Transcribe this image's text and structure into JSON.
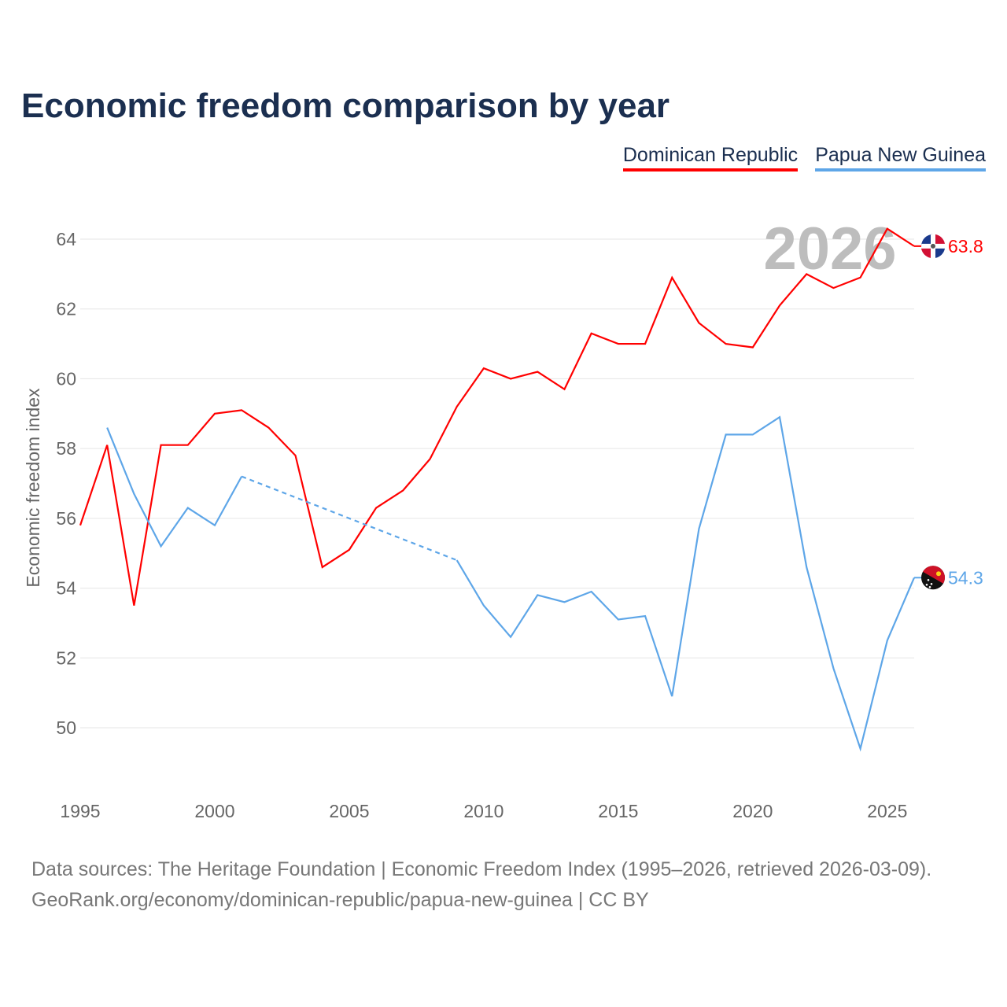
{
  "title": "Economic freedom comparison by year",
  "legend": [
    {
      "label": "Dominican Republic",
      "color": "#ff0000"
    },
    {
      "label": "Papua New Guinea",
      "color": "#5ea6e8"
    }
  ],
  "footer": {
    "line1": "Data sources: The Heritage Foundation | Economic Freedom Index (1995–2026, retrieved 2026-03-09).",
    "line2": "GeoRank.org/economy/dominican-republic/papua-new-guinea | CC BY"
  },
  "chart_data": {
    "type": "line",
    "title": "Economic freedom comparison by year",
    "xlabel": "",
    "ylabel": "Economic freedom index",
    "xlim": [
      1995,
      2026
    ],
    "ylim": [
      48.4,
      65
    ],
    "xticks": [
      1995,
      2000,
      2005,
      2010,
      2015,
      2020,
      2025
    ],
    "yticks": [
      50,
      52,
      54,
      56,
      58,
      60,
      62,
      64
    ],
    "grid": true,
    "legend_position": "top-right",
    "watermark": "2026",
    "x": [
      1995,
      1996,
      1997,
      1998,
      1999,
      2000,
      2001,
      2002,
      2003,
      2004,
      2005,
      2006,
      2007,
      2008,
      2009,
      2010,
      2011,
      2012,
      2013,
      2014,
      2015,
      2016,
      2017,
      2018,
      2019,
      2020,
      2021,
      2022,
      2023,
      2024,
      2025,
      2026
    ],
    "series": [
      {
        "name": "Dominican Republic",
        "color": "#ff0000",
        "end_label": "63.8",
        "flag": "dominican-republic",
        "values": [
          55.8,
          58.1,
          53.5,
          58.1,
          58.1,
          59.0,
          59.1,
          58.6,
          57.8,
          54.6,
          55.1,
          56.3,
          56.8,
          57.7,
          59.2,
          60.3,
          60.0,
          60.2,
          59.7,
          61.3,
          61.0,
          61.0,
          62.9,
          61.6,
          61.0,
          60.9,
          62.1,
          63.0,
          62.6,
          62.9,
          64.3,
          63.8
        ]
      },
      {
        "name": "Papua New Guinea",
        "color": "#5ea6e8",
        "end_label": "54.3",
        "flag": "papua-new-guinea",
        "values": [
          null,
          58.6,
          56.7,
          55.2,
          56.3,
          55.8,
          57.2,
          null,
          null,
          null,
          null,
          null,
          null,
          null,
          54.8,
          53.5,
          52.6,
          53.8,
          53.6,
          53.9,
          53.1,
          53.2,
          50.9,
          55.7,
          58.4,
          58.4,
          58.9,
          54.6,
          51.7,
          49.4,
          52.5,
          54.3
        ]
      }
    ]
  }
}
